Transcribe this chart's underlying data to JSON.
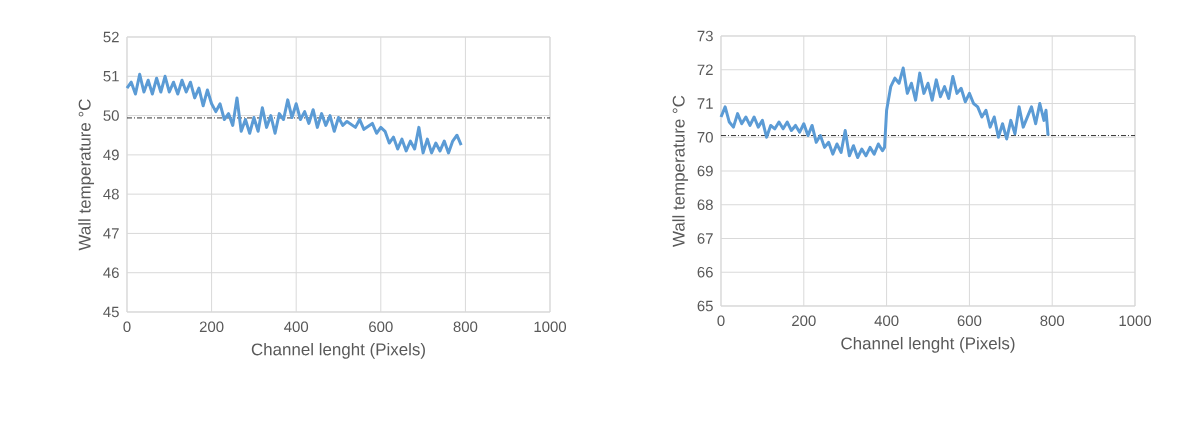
{
  "chart_data": [
    {
      "type": "line",
      "xlabel": "Channel lenght (Pixels)",
      "ylabel": "Wall temperature °C",
      "grid": true,
      "xlim": [
        0,
        1000
      ],
      "xticks": [
        0,
        200,
        400,
        600,
        800,
        1000
      ],
      "ylim": [
        45,
        52
      ],
      "yticks": [
        45,
        46,
        47,
        48,
        49,
        50,
        51,
        52
      ],
      "ref_lines": [
        {
          "axis": "y",
          "value": 49.94,
          "color": "#000000"
        }
      ],
      "series": [
        {
          "color": "#5b9bd5",
          "x": [
            0,
            10,
            20,
            30,
            40,
            50,
            60,
            70,
            80,
            90,
            100,
            110,
            120,
            130,
            140,
            150,
            160,
            170,
            180,
            190,
            200,
            210,
            220,
            230,
            240,
            250,
            260,
            270,
            280,
            290,
            300,
            310,
            320,
            330,
            340,
            350,
            360,
            370,
            380,
            390,
            400,
            410,
            420,
            430,
            440,
            450,
            460,
            470,
            480,
            490,
            500,
            510,
            520,
            540,
            550,
            560,
            580,
            590,
            600,
            610,
            620,
            630,
            640,
            650,
            660,
            670,
            680,
            690,
            700,
            710,
            720,
            730,
            740,
            750,
            760,
            770,
            780,
            790
          ],
          "values": [
            50.7,
            50.85,
            50.55,
            51.05,
            50.6,
            50.9,
            50.55,
            50.95,
            50.6,
            51.0,
            50.6,
            50.85,
            50.55,
            50.9,
            50.6,
            50.85,
            50.45,
            50.7,
            50.25,
            50.65,
            50.3,
            50.1,
            50.3,
            49.9,
            50.05,
            49.75,
            50.45,
            49.6,
            49.9,
            49.55,
            49.95,
            49.6,
            50.2,
            49.7,
            50.0,
            49.55,
            50.05,
            49.9,
            50.4,
            49.95,
            50.3,
            49.9,
            50.1,
            49.8,
            50.15,
            49.7,
            50.05,
            49.75,
            50.0,
            49.6,
            49.95,
            49.75,
            49.85,
            49.7,
            49.9,
            49.65,
            49.8,
            49.55,
            49.7,
            49.6,
            49.3,
            49.45,
            49.15,
            49.4,
            49.1,
            49.35,
            49.15,
            49.7,
            49.05,
            49.4,
            49.05,
            49.3,
            49.1,
            49.35,
            49.05,
            49.35,
            49.5,
            49.25
          ]
        }
      ]
    },
    {
      "type": "line",
      "xlabel": "Channel lenght (Pixels)",
      "ylabel": "Wall temperature °C",
      "grid": true,
      "xlim": [
        0,
        1000
      ],
      "xticks": [
        0,
        200,
        400,
        600,
        800,
        1000
      ],
      "ylim": [
        65,
        73
      ],
      "yticks": [
        65,
        66,
        67,
        68,
        69,
        70,
        71,
        72,
        73
      ],
      "ref_lines": [
        {
          "axis": "y",
          "value": 70.05,
          "color": "#000000"
        }
      ],
      "series": [
        {
          "color": "#5b9bd5",
          "x": [
            0,
            10,
            20,
            30,
            40,
            50,
            60,
            70,
            80,
            90,
            100,
            110,
            120,
            130,
            140,
            150,
            160,
            170,
            180,
            190,
            200,
            210,
            220,
            230,
            240,
            250,
            260,
            270,
            280,
            290,
            300,
            310,
            320,
            330,
            340,
            350,
            360,
            370,
            380,
            390,
            395,
            400,
            410,
            420,
            430,
            440,
            450,
            460,
            470,
            480,
            490,
            500,
            510,
            520,
            530,
            540,
            550,
            560,
            570,
            580,
            590,
            600,
            610,
            620,
            630,
            640,
            650,
            660,
            670,
            680,
            690,
            700,
            710,
            720,
            730,
            740,
            750,
            760,
            770,
            780,
            785,
            790
          ],
          "values": [
            70.6,
            70.9,
            70.45,
            70.3,
            70.7,
            70.4,
            70.6,
            70.35,
            70.6,
            70.3,
            70.5,
            70.0,
            70.35,
            70.25,
            70.45,
            70.25,
            70.45,
            70.2,
            70.35,
            70.15,
            70.4,
            70.05,
            70.35,
            69.85,
            70.05,
            69.7,
            69.85,
            69.5,
            69.8,
            69.55,
            70.2,
            69.45,
            69.75,
            69.4,
            69.65,
            69.45,
            69.7,
            69.5,
            69.8,
            69.6,
            69.7,
            70.8,
            71.5,
            71.75,
            71.6,
            72.05,
            71.3,
            71.6,
            71.1,
            71.9,
            71.3,
            71.6,
            71.1,
            71.7,
            71.2,
            71.5,
            71.15,
            71.8,
            71.3,
            71.45,
            71.05,
            71.3,
            71.0,
            70.9,
            70.6,
            70.8,
            70.3,
            70.6,
            70.0,
            70.4,
            69.95,
            70.5,
            70.1,
            70.9,
            70.3,
            70.6,
            70.9,
            70.4,
            71.0,
            70.5,
            70.8,
            70.05
          ]
        }
      ]
    }
  ]
}
